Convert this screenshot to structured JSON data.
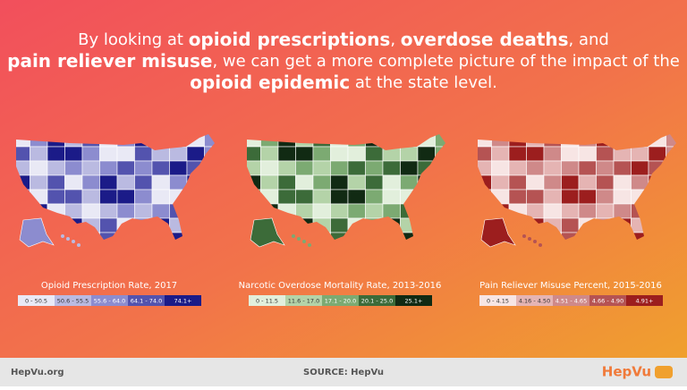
{
  "headline": {
    "lines": [
      [
        {
          "text": "By looking at ",
          "bold": false
        },
        {
          "text": "opioid prescriptions",
          "bold": true
        },
        {
          "text": ", ",
          "bold": false
        },
        {
          "text": "overdose deaths",
          "bold": true
        },
        {
          "text": ", and",
          "bold": false
        }
      ],
      [
        {
          "text": "pain reliever misuse",
          "bold": true
        },
        {
          "text": ", we can get a more complete picture of the impact of the",
          "bold": false
        }
      ],
      [
        {
          "text": "opioid epidemic",
          "bold": true
        },
        {
          "text": " at the state level.",
          "bold": false
        }
      ]
    ]
  },
  "maps": [
    {
      "title": "Opioid Prescription Rate, 2017",
      "legend": [
        {
          "label": "0 - 50.5",
          "color": "#e9e9f5"
        },
        {
          "label": "50.6 - 55.5",
          "color": "#babae1"
        },
        {
          "label": "55.6 - 64.0",
          "color": "#8c8ccf"
        },
        {
          "label": "64.1 - 74.0",
          "color": "#5353ae"
        },
        {
          "label": "74.1+",
          "color": "#1b1b88"
        }
      ]
    },
    {
      "title": "Narcotic Overdose Mortality Rate, 2013-2016",
      "legend": [
        {
          "label": "0 - 11.5",
          "color": "#e2efdc"
        },
        {
          "label": "11.6 - 17.0",
          "color": "#b4d3a8"
        },
        {
          "label": "17.1 - 20.0",
          "color": "#7caa72"
        },
        {
          "label": "20.1 - 25.0",
          "color": "#3c6b39"
        },
        {
          "label": "25.1+",
          "color": "#112a13"
        }
      ]
    },
    {
      "title": "Pain Reliever Misuse Percent, 2015-2016",
      "legend": [
        {
          "label": "0 - 4.15",
          "color": "#f7e5e4"
        },
        {
          "label": "4.16 - 4.50",
          "color": "#e5b4b3"
        },
        {
          "label": "4.51 - 4.65",
          "color": "#cf8989"
        },
        {
          "label": "4.66 - 4.90",
          "color": "#b55353"
        },
        {
          "label": "4.91+",
          "color": "#9c1e1e"
        }
      ]
    }
  ],
  "footer": {
    "left": "HepVu.org",
    "center": "SOURCE: HepVu",
    "logo": "HepVu"
  }
}
